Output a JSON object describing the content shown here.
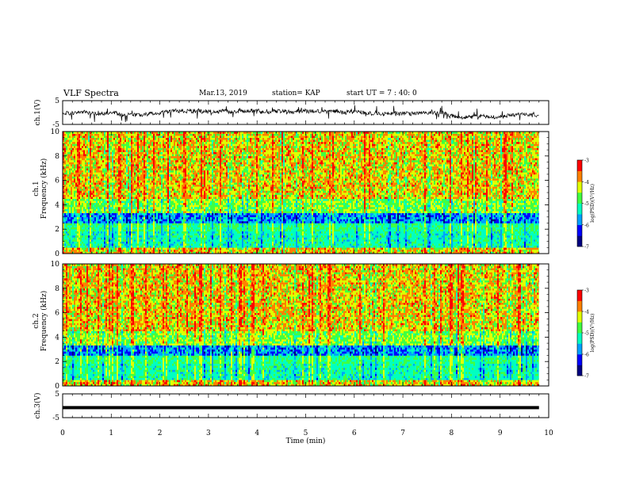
{
  "header": {
    "title": "VLF Spectra",
    "date": "Mar.13, 2019",
    "station": "station= KAP",
    "start_ut": "start UT =  7 : 40: 0"
  },
  "chart_data": [
    {
      "type": "line",
      "panel": "waveform-ch1",
      "ylabel": "ch.1(V)",
      "ylim": [
        -5,
        5
      ],
      "yticks": [
        -5,
        5
      ],
      "xlim": [
        0,
        10
      ],
      "description_values": "noisy waveform, roughly between -2 and 1 V"
    },
    {
      "type": "heatmap",
      "panel": "spectrogram-ch1",
      "ylabel": "ch.1\nFrequency (kHz)",
      "ylabel_lines": [
        "ch.1",
        "Frequency  (kHz)"
      ],
      "ylim": [
        0,
        10
      ],
      "yticks": [
        0,
        2,
        4,
        6,
        8,
        10
      ],
      "xlim": [
        0,
        9.8
      ],
      "colorbar": {
        "label": "log(PSD)(V²/Hz)",
        "range": [
          -7,
          -3
        ],
        "ticks": [
          -7,
          -6,
          -5,
          -4,
          -3
        ]
      }
    },
    {
      "type": "heatmap",
      "panel": "spectrogram-ch2",
      "ylabel_lines": [
        "ch.2",
        "Frequency  (kHz)"
      ],
      "ylim": [
        0,
        10
      ],
      "yticks": [
        0,
        2,
        4,
        6,
        8,
        10
      ],
      "xlim": [
        0,
        9.8
      ],
      "colorbar": {
        "label": "log(PSD)(V²/Hz)",
        "range": [
          -7,
          -3
        ],
        "ticks": [
          -7,
          -6,
          -5,
          -4,
          -3
        ]
      }
    },
    {
      "type": "line",
      "panel": "waveform-ch3",
      "ylabel": "ch.3(V)",
      "ylim": [
        -5,
        5
      ],
      "yticks": [
        -5,
        5
      ],
      "xlim": [
        0,
        9.8
      ],
      "constant_value": -0.8
    }
  ],
  "xaxis": {
    "label": "Time  (min)",
    "ticks": [
      0,
      1,
      2,
      3,
      4,
      5,
      6,
      7,
      8,
      9,
      10
    ],
    "xlim": [
      0,
      10
    ]
  },
  "colors": {
    "colormap": [
      "#000080",
      "#0000ff",
      "#00a0ff",
      "#00ffc0",
      "#40ff40",
      "#e0ff00",
      "#ff8000",
      "#ff0000",
      "#ffffff"
    ]
  }
}
